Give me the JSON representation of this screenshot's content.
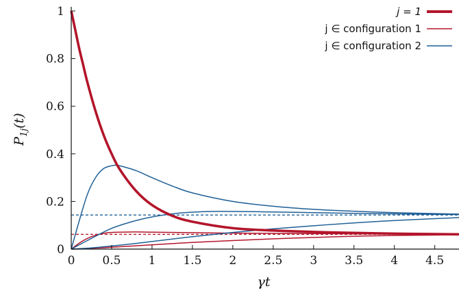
{
  "chart_data": {
    "type": "line",
    "xlabel": "γt",
    "ylabel": "P1j(t)",
    "ylabel_main": "P",
    "ylabel_sub": "1j",
    "ylabel_arg": "(t)",
    "xlim": [
      0,
      4.8
    ],
    "ylim": [
      0,
      1.0
    ],
    "x_ticks": [
      "0",
      "0.5",
      "1",
      "1.5",
      "2",
      "2.5",
      "3",
      "3.5",
      "4",
      "4.5"
    ],
    "y_ticks": [
      "0",
      "0.2",
      "0.4",
      "0.6",
      "0.8",
      "1"
    ],
    "grid": false,
    "legend_position": "top-right",
    "legend": [
      {
        "label": "j = 1",
        "color": "#b3152b",
        "width": "thick"
      },
      {
        "label": "j ∈ configuration 1",
        "color": "#b3152b",
        "width": "thin"
      },
      {
        "label": "j ∈ configuration 2",
        "color": "#1f5f96",
        "width": "thin"
      }
    ],
    "series": [
      {
        "legend_index": 0,
        "color": "#b3152b",
        "x": [
          0,
          0.05,
          0.1,
          0.15,
          0.2,
          0.3,
          0.4,
          0.5,
          0.6,
          0.8,
          1.0,
          1.25,
          1.5,
          2.0,
          2.5,
          3.0,
          3.5,
          4.0,
          4.5,
          4.8
        ],
        "y": [
          1.0,
          0.92,
          0.84,
          0.77,
          0.7,
          0.58,
          0.48,
          0.4,
          0.335,
          0.245,
          0.185,
          0.14,
          0.115,
          0.088,
          0.078,
          0.072,
          0.068,
          0.065,
          0.063,
          0.062
        ]
      },
      {
        "legend_index": 1,
        "color": "#b3152b",
        "x": [
          0,
          0.1,
          0.2,
          0.3,
          0.4,
          0.5,
          0.75,
          1.0,
          1.25,
          1.5,
          2.0,
          2.5,
          3.0,
          3.5,
          4.0,
          4.5,
          4.8
        ],
        "y": [
          0,
          0.025,
          0.045,
          0.058,
          0.066,
          0.07,
          0.072,
          0.071,
          0.07,
          0.069,
          0.067,
          0.066,
          0.065,
          0.064,
          0.063,
          0.062,
          0.062
        ]
      },
      {
        "legend_index": 1,
        "color": "#b3152b",
        "x": [
          0,
          0.25,
          0.5,
          1.0,
          1.5,
          2.0,
          2.5,
          3.0,
          3.5,
          4.0,
          4.5,
          4.8
        ],
        "y": [
          0,
          0.003,
          0.008,
          0.018,
          0.028,
          0.036,
          0.043,
          0.049,
          0.054,
          0.057,
          0.059,
          0.06
        ]
      },
      {
        "legend_index": 2,
        "color": "#1f5f96",
        "x": [
          0,
          0.1,
          0.2,
          0.3,
          0.4,
          0.5,
          0.55,
          0.6,
          0.8,
          1.0,
          1.25,
          1.5,
          2.0,
          2.5,
          3.0,
          3.5,
          4.0,
          4.5,
          4.8
        ],
        "y": [
          0,
          0.12,
          0.23,
          0.3,
          0.338,
          0.35,
          0.352,
          0.35,
          0.33,
          0.3,
          0.265,
          0.236,
          0.2,
          0.18,
          0.167,
          0.159,
          0.153,
          0.149,
          0.147
        ]
      },
      {
        "legend_index": 2,
        "color": "#1f5f96",
        "x": [
          0,
          0.25,
          0.5,
          0.75,
          1.0,
          1.25,
          1.5,
          1.75,
          2.0,
          2.5,
          3.0,
          3.5,
          4.0,
          4.5,
          4.8
        ],
        "y": [
          0,
          0.045,
          0.087,
          0.115,
          0.135,
          0.148,
          0.155,
          0.158,
          0.158,
          0.156,
          0.153,
          0.15,
          0.148,
          0.146,
          0.145
        ]
      },
      {
        "legend_index": 2,
        "color": "#1f5f96",
        "x": [
          0,
          0.25,
          0.5,
          0.75,
          1.0,
          1.5,
          2.0,
          2.5,
          3.0,
          3.5,
          4.0,
          4.5,
          4.8
        ],
        "y": [
          0,
          0.005,
          0.013,
          0.022,
          0.032,
          0.052,
          0.07,
          0.085,
          0.098,
          0.11,
          0.12,
          0.128,
          0.132
        ]
      }
    ],
    "reference_lines": [
      {
        "y": 0.143,
        "color": "#1f5f96",
        "style": "dashed"
      },
      {
        "y": 0.062,
        "color": "#b3152b",
        "style": "dashed"
      }
    ]
  }
}
